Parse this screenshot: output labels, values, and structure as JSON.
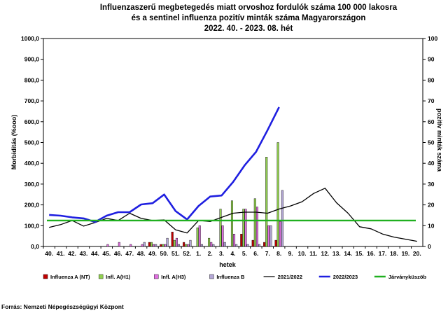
{
  "chart_data": {
    "type": "bar",
    "title": [
      "Influenzaszerű megbetegedés miatt orvoshoz fordulók száma 100 000 lakosra",
      "és a sentinel influenza pozitív minták száma Magyarországon",
      "2022. 40. - 2023. 08. hét"
    ],
    "xlabel": "hetek",
    "ylabel": "Morbiditás (%ooo)",
    "y2label": "pozitív minták száma",
    "ylim": [
      0,
      1000
    ],
    "y2lim": [
      0,
      100
    ],
    "y_ticks": [
      "0,0",
      "100,0",
      "200,0",
      "300,0",
      "400,0",
      "500,0",
      "600,0",
      "700,0",
      "800,0",
      "900,0",
      "1000,0"
    ],
    "y2_ticks": [
      "0",
      "10",
      "20",
      "30",
      "40",
      "50",
      "60",
      "70",
      "80",
      "90",
      "100"
    ],
    "categories": [
      "40.",
      "41.",
      "42.",
      "43.",
      "44.",
      "45.",
      "46.",
      "47.",
      "48.",
      "49.",
      "50.",
      "51.",
      "52.",
      "1.",
      "2.",
      "3.",
      "4.",
      "5.",
      "6.",
      "7.",
      "8.",
      "9.",
      "10.",
      "11.",
      "12.",
      "13.",
      "14.",
      "15.",
      "16.",
      "17.",
      "18.",
      "19.",
      "20."
    ],
    "bar_series": [
      {
        "name": "Influenza A (NT)",
        "color": "#c00000",
        "values": [
          0,
          0,
          0,
          0,
          0,
          0,
          0,
          0,
          0,
          2,
          1,
          7,
          2,
          0,
          0,
          0,
          0,
          6,
          3,
          2,
          3,
          null,
          null,
          null,
          null,
          null,
          null,
          null,
          null,
          null,
          null,
          null,
          null
        ]
      },
      {
        "name": "Infl. A(H1)",
        "color": "#92d050",
        "values": [
          0,
          0,
          0,
          0,
          0,
          0,
          0,
          0,
          0,
          2,
          1,
          3,
          1,
          9,
          4,
          18,
          22,
          18,
          23,
          43,
          50,
          null,
          null,
          null,
          null,
          null,
          null,
          null,
          null,
          null,
          null,
          null,
          null
        ]
      },
      {
        "name": "Infl. A(H3)",
        "color": "#e070e0",
        "values": [
          0,
          0,
          0,
          0,
          0,
          1,
          2,
          1,
          1,
          1,
          1,
          4,
          1,
          10,
          2,
          10,
          6,
          18,
          19,
          10,
          12,
          null,
          null,
          null,
          null,
          null,
          null,
          null,
          null,
          null,
          null,
          null,
          null
        ]
      },
      {
        "name": "Influenza B",
        "color": "#b4a7d6",
        "values": [
          0,
          0,
          0,
          0,
          0,
          0,
          0,
          0,
          2,
          1,
          4,
          1,
          3,
          1,
          1,
          2,
          1,
          1,
          1,
          10,
          27,
          null,
          null,
          null,
          null,
          null,
          null,
          null,
          null,
          null,
          null,
          null,
          null
        ]
      }
    ],
    "line_series": [
      {
        "name": "2021/2022",
        "color": "#000000",
        "values": [
          92,
          105,
          125,
          98,
          115,
          135,
          125,
          160,
          135,
          125,
          128,
          80,
          65,
          125,
          120,
          140,
          160,
          165,
          165,
          160,
          180,
          195,
          215,
          255,
          280,
          210,
          160,
          95,
          85,
          60,
          45,
          35,
          25
        ]
      },
      {
        "name": "2022/2023",
        "color": "#1f1fe0",
        "values": [
          152,
          148,
          140,
          135,
          118,
          148,
          165,
          165,
          202,
          208,
          250,
          170,
          130,
          195,
          240,
          245,
          310,
          390,
          455,
          560,
          670,
          null,
          null,
          null,
          null,
          null,
          null,
          null,
          null,
          null,
          null,
          null,
          null
        ]
      },
      {
        "name": "Járványküszöb",
        "color": "#20b020",
        "values": [
          125,
          125,
          125,
          125,
          125,
          125,
          125,
          125,
          125,
          125,
          125,
          125,
          125,
          125,
          125,
          125,
          125,
          125,
          125,
          125,
          125,
          125,
          125,
          125,
          125,
          125,
          125,
          125,
          125,
          125,
          125,
          125,
          125
        ]
      }
    ]
  },
  "source": "Forrás: Nemzeti Népegészségügyi Központ"
}
